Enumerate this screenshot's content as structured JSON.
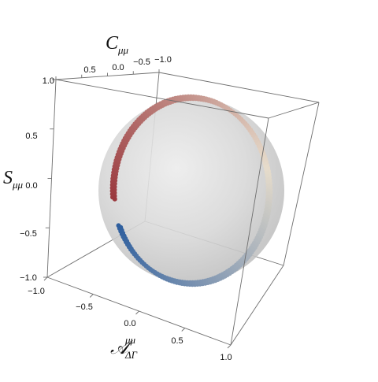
{
  "chart_data": {
    "type": "scatter",
    "projection": "3d",
    "axes": {
      "x": {
        "label": "𝒜",
        "label_sub": "ΔΓ",
        "label_sup": "μμ",
        "range": [
          -1.0,
          1.0
        ],
        "ticks": [
          "−1.0",
          "−0.5",
          "0.0",
          "0.5",
          "1.0"
        ]
      },
      "y": {
        "label": "C",
        "label_sub": "μμ",
        "range": [
          -1.0,
          1.0
        ],
        "ticks": [
          "1.0",
          "0.5",
          "0.0",
          "−0.5",
          "−1.0"
        ]
      },
      "z": {
        "label": "S",
        "label_sub": "μμ",
        "range": [
          -1.0,
          1.0
        ],
        "ticks": [
          "1.0",
          "0.5",
          "0.0",
          "−0.5",
          "−1.0"
        ]
      }
    },
    "sphere": {
      "radius": 1.0,
      "color": "#c9c9c9"
    },
    "curve": {
      "description_points": "ring of points on unit sphere (A^2 + C^2 + S^2 = 1)",
      "color_start": "#2f5f9e",
      "color_mid": "#e6dccb",
      "color_end": "#9b3a3f"
    },
    "box": true,
    "grid": false
  }
}
